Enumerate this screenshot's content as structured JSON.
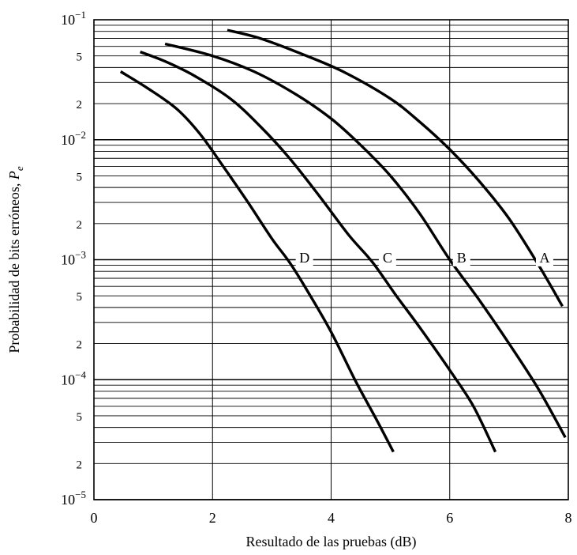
{
  "chart_data": {
    "type": "line",
    "xlabel": "Resultado de las pruebas (dB)",
    "ylabel": "Probabilidad de bits erróneos, ",
    "ylabel_symbol": "P",
    "ylabel_subscript": "e",
    "xlim": [
      0,
      8
    ],
    "ylim": [
      1e-05,
      0.1
    ],
    "yscale": "log",
    "grid": true,
    "x_ticks": [
      0,
      2,
      4,
      6,
      8
    ],
    "x_tick_labels": [
      "0",
      "2",
      "4",
      "6",
      "8"
    ],
    "y_decades": [
      {
        "value": 0.1,
        "base": "10",
        "exp": "−1"
      },
      {
        "value": 0.01,
        "base": "10",
        "exp": "−2"
      },
      {
        "value": 0.001,
        "base": "10",
        "exp": "−3"
      },
      {
        "value": 0.0001,
        "base": "10",
        "exp": "−4"
      },
      {
        "value": 1e-05,
        "base": "10",
        "exp": "−5"
      }
    ],
    "y_minor_labels": [
      {
        "value": 0.05,
        "label": "5"
      },
      {
        "value": 0.02,
        "label": "2"
      },
      {
        "value": 0.005,
        "label": "5"
      },
      {
        "value": 0.002,
        "label": "2"
      },
      {
        "value": 0.0005,
        "label": "5"
      },
      {
        "value": 0.0002,
        "label": "2"
      },
      {
        "value": 5e-05,
        "label": "5"
      },
      {
        "value": 2e-05,
        "label": "2"
      }
    ],
    "series": [
      {
        "name": "A",
        "label_at": {
          "x": 7.6,
          "y": 0.00095
        },
        "x": [
          2.25,
          2.8,
          3.5,
          4.2,
          5.0,
          5.5,
          6.0,
          6.5,
          7.0,
          7.5,
          7.9
        ],
        "y": [
          0.082,
          0.07,
          0.052,
          0.037,
          0.022,
          0.014,
          0.0083,
          0.0045,
          0.0022,
          0.0009,
          0.00041
        ]
      },
      {
        "name": "B",
        "label_at": {
          "x": 6.2,
          "y": 0.00095
        },
        "x": [
          1.2,
          2.0,
          2.7,
          3.4,
          4.0,
          4.5,
          5.0,
          5.5,
          6.0,
          6.5,
          7.0,
          7.5,
          7.95
        ],
        "y": [
          0.063,
          0.05,
          0.037,
          0.024,
          0.015,
          0.009,
          0.005,
          0.0024,
          0.001,
          0.00046,
          0.0002,
          8.3e-05,
          3.3e-05
        ]
      },
      {
        "name": "C",
        "label_at": {
          "x": 4.95,
          "y": 0.00095
        },
        "x": [
          0.78,
          1.2,
          1.7,
          2.3,
          2.8,
          3.3,
          3.8,
          4.3,
          4.7,
          5.1,
          5.5,
          6.0,
          6.4,
          6.77
        ],
        "y": [
          0.054,
          0.045,
          0.034,
          0.022,
          0.013,
          0.007,
          0.0034,
          0.0016,
          0.00095,
          0.0005,
          0.00027,
          0.00012,
          6e-05,
          2.5e-05
        ]
      },
      {
        "name": "D",
        "label_at": {
          "x": 3.55,
          "y": 0.00095
        },
        "x": [
          0.45,
          0.9,
          1.4,
          1.8,
          2.2,
          2.6,
          3.0,
          3.3,
          3.6,
          4.0,
          4.4,
          4.75,
          5.05
        ],
        "y": [
          0.037,
          0.027,
          0.018,
          0.011,
          0.0058,
          0.003,
          0.0015,
          0.00095,
          0.00055,
          0.00025,
          0.0001,
          4.8e-05,
          2.5e-05
        ]
      }
    ]
  }
}
